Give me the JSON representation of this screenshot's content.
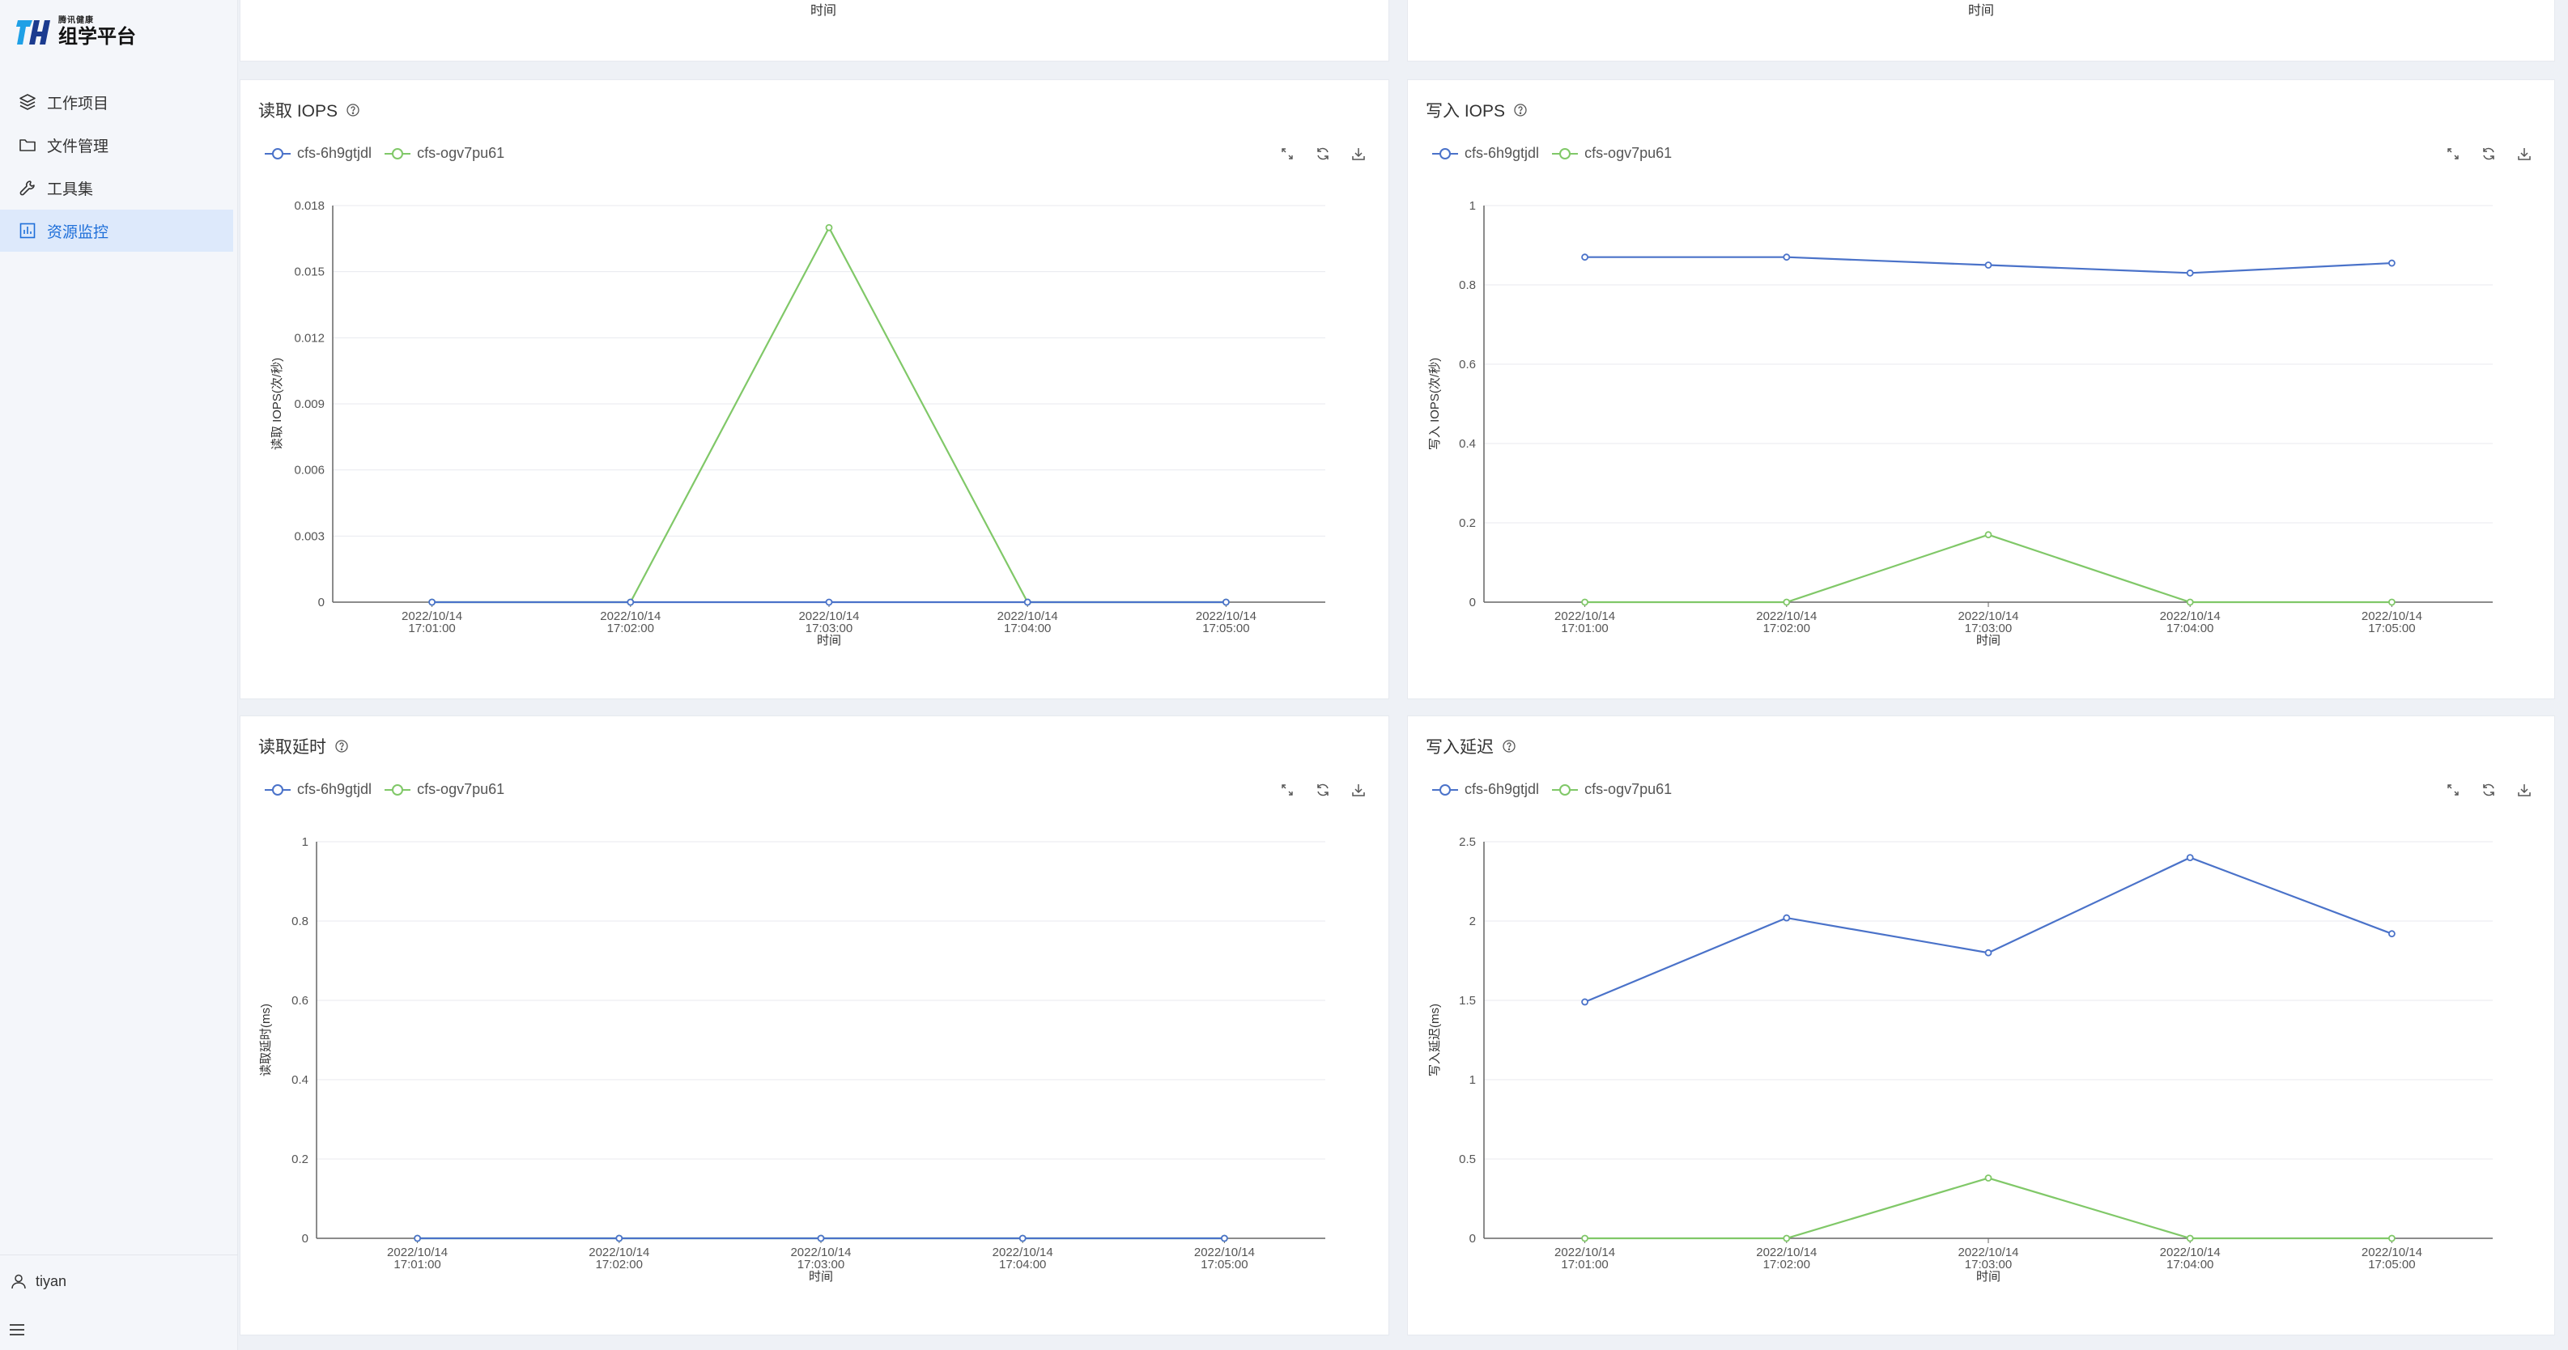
{
  "app": {
    "logo_sub": "腾讯健康",
    "logo_main": "组学平台",
    "brand_colors": {
      "primary": "#1e6fd9",
      "logo_blue": "#1ea0e6",
      "logo_dark": "#1b3b8f"
    }
  },
  "sidebar": {
    "items": [
      {
        "label": "工作项目",
        "icon": "layers-icon",
        "active": false
      },
      {
        "label": "文件管理",
        "icon": "folder-icon",
        "active": false
      },
      {
        "label": "工具集",
        "icon": "wrench-icon",
        "active": false
      },
      {
        "label": "资源监控",
        "icon": "bar-chart-icon",
        "active": true
      }
    ],
    "user": "tiyan"
  },
  "top_cards": {
    "left_xlabel": "时间",
    "right_xlabel": "时间"
  },
  "colors": {
    "series1": "#4a72c9",
    "series2": "#80c868",
    "grid": "#e8eaef",
    "axis": "#666666"
  },
  "cards": [
    {
      "title": "读取 IOPS",
      "has_help": true
    },
    {
      "title": "写入 IOPS",
      "has_help": true
    },
    {
      "title": "读取延时",
      "has_help": true
    },
    {
      "title": "写入延迟",
      "has_help": true
    }
  ],
  "legend": {
    "series": [
      "cfs-6h9gtjdl",
      "cfs-ogv7pu61"
    ]
  },
  "chart_data": [
    {
      "type": "line",
      "title": "读取 IOPS",
      "xlabel": "时间",
      "ylabel": "读取 IOPS(次/秒)",
      "categories": [
        "2022/10/14 17:01:00",
        "2022/10/14 17:02:00",
        "2022/10/14 17:03:00",
        "2022/10/14 17:04:00",
        "2022/10/14 17:05:00"
      ],
      "ylim": [
        0,
        0.018
      ],
      "yticks": [
        "0",
        "0.003",
        "0.006",
        "0.009",
        "0.012",
        "0.015",
        "0.018"
      ],
      "series": [
        {
          "name": "cfs-6h9gtjdl",
          "values": [
            0,
            0,
            0,
            0,
            0
          ]
        },
        {
          "name": "cfs-ogv7pu61",
          "values": [
            0,
            0,
            0.017,
            0,
            0
          ]
        }
      ],
      "grid": true,
      "legend_position": "top-left"
    },
    {
      "type": "line",
      "title": "写入 IOPS",
      "xlabel": "时间",
      "ylabel": "写入 IOPS(次/秒)",
      "categories": [
        "2022/10/14 17:01:00",
        "2022/10/14 17:02:00",
        "2022/10/14 17:03:00",
        "2022/10/14 17:04:00",
        "2022/10/14 17:05:00"
      ],
      "ylim": [
        0,
        1
      ],
      "yticks": [
        "0",
        "0.2",
        "0.4",
        "0.6",
        "0.8",
        "1"
      ],
      "series": [
        {
          "name": "cfs-6h9gtjdl",
          "values": [
            0.87,
            0.87,
            0.85,
            0.83,
            0.855
          ]
        },
        {
          "name": "cfs-ogv7pu61",
          "values": [
            0,
            0,
            0.17,
            0,
            0
          ]
        }
      ],
      "grid": true,
      "legend_position": "top-left"
    },
    {
      "type": "line",
      "title": "读取延时",
      "xlabel": "时间",
      "ylabel": "读取延时(ms)",
      "categories": [
        "2022/10/14 17:01:00",
        "2022/10/14 17:02:00",
        "2022/10/14 17:03:00",
        "2022/10/14 17:04:00",
        "2022/10/14 17:05:00"
      ],
      "ylim": [
        0,
        1
      ],
      "yticks": [
        "0",
        "0.2",
        "0.4",
        "0.6",
        "0.8",
        "1"
      ],
      "series": [
        {
          "name": "cfs-6h9gtjdl",
          "values": [
            0,
            0,
            0,
            0,
            0
          ]
        },
        {
          "name": "cfs-ogv7pu61",
          "values": [
            0,
            0,
            0,
            0,
            0
          ]
        }
      ],
      "grid": true,
      "legend_position": "top-left"
    },
    {
      "type": "line",
      "title": "写入延迟",
      "xlabel": "时间",
      "ylabel": "写入延迟(ms)",
      "categories": [
        "2022/10/14 17:01:00",
        "2022/10/14 17:02:00",
        "2022/10/14 17:03:00",
        "2022/10/14 17:04:00",
        "2022/10/14 17:05:00"
      ],
      "ylim": [
        0,
        2.5
      ],
      "yticks": [
        "0",
        "0.5",
        "1",
        "1.5",
        "2",
        "2.5"
      ],
      "series": [
        {
          "name": "cfs-6h9gtjdl",
          "values": [
            1.49,
            2.02,
            1.8,
            2.4,
            1.92
          ]
        },
        {
          "name": "cfs-ogv7pu61",
          "values": [
            0,
            0,
            0.38,
            0,
            0
          ]
        }
      ],
      "grid": true,
      "legend_position": "top-left"
    }
  ]
}
